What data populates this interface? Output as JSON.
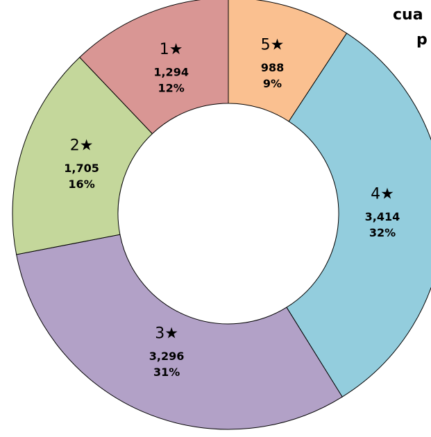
{
  "chart_data": {
    "type": "donut",
    "title_lines": [
      "cua",
      "p"
    ],
    "categories": [
      "5★",
      "4★",
      "3★",
      "2★",
      "1★"
    ],
    "values": [
      988,
      3414,
      3296,
      1705,
      1294
    ],
    "value_labels": [
      "988",
      "3,414",
      "3,296",
      "1,705",
      "1,294"
    ],
    "percents": [
      9,
      32,
      31,
      16,
      12
    ],
    "percent_labels": [
      "9%",
      "32%",
      "31%",
      "16%",
      "12%"
    ],
    "colors": [
      "#fac090",
      "#93cddd",
      "#b2a1c7",
      "#c4d79b",
      "#d99694"
    ]
  }
}
